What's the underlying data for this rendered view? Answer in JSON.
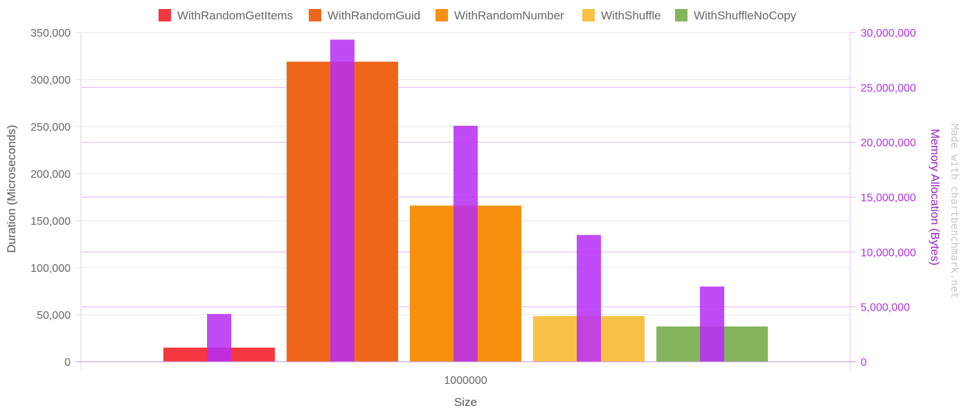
{
  "chart_data": {
    "type": "bar",
    "xlabel": "Size",
    "categories": [
      "1000000"
    ],
    "left_axis": {
      "label": "Duration (Microseconds)",
      "ylim": [
        0,
        350000
      ],
      "ticks": [
        "0",
        "50,000",
        "100,000",
        "150,000",
        "200,000",
        "250,000",
        "300,000",
        "350,000"
      ]
    },
    "right_axis": {
      "label": "Memory Allocation (Bytes)",
      "ylim": [
        0,
        30000000
      ],
      "ticks": [
        "0",
        "5,000,000",
        "10,000,000",
        "15,000,000",
        "20,000,000",
        "25,000,000",
        "30,000,000"
      ]
    },
    "series": [
      {
        "name": "WithRandomGetItems",
        "color": "#f5383f",
        "duration": 15000,
        "memory": 4350000
      },
      {
        "name": "WithRandomGuid",
        "color": "#f06618",
        "duration": 319000,
        "memory": 29350000
      },
      {
        "name": "WithRandomNumber",
        "color": "#f7900f",
        "duration": 166000,
        "memory": 21500000
      },
      {
        "name": "WithShuffle",
        "color": "#f8c146",
        "duration": 48500,
        "memory": 11550000
      },
      {
        "name": "WithShuffleNoCopy",
        "color": "#84b55c",
        "duration": 37500,
        "memory": 6850000
      }
    ],
    "memory_bar_color": "#b72cf7",
    "legend_position": "top",
    "grid": true,
    "watermark": "Made with chartbenchmark.net"
  }
}
